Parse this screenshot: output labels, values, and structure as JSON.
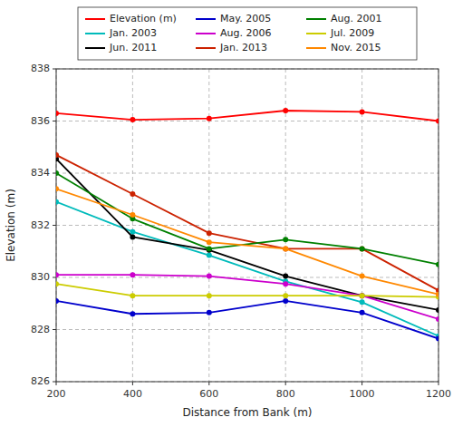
{
  "chart_data": {
    "type": "line",
    "x": [
      200,
      400,
      600,
      800,
      1000,
      1200
    ],
    "series": [
      {
        "name": "Elevation (m)",
        "color": "#ff0000",
        "values": [
          836.3,
          836.05,
          836.1,
          836.4,
          836.35,
          836.0
        ]
      },
      {
        "name": "Jan. 2003",
        "color": "#00bbbb",
        "values": [
          832.9,
          831.75,
          830.85,
          829.85,
          829.05,
          827.75
        ]
      },
      {
        "name": "Jun. 2011",
        "color": "#000000",
        "values": [
          834.55,
          831.55,
          831.05,
          830.05,
          829.3,
          828.75
        ]
      },
      {
        "name": "May. 2005",
        "color": "#0000cc",
        "values": [
          829.1,
          828.6,
          828.65,
          829.1,
          828.65,
          827.65
        ]
      },
      {
        "name": "Aug. 2006",
        "color": "#cc00cc",
        "values": [
          830.1,
          830.1,
          830.05,
          829.75,
          829.3,
          828.4
        ]
      },
      {
        "name": "Jan. 2013",
        "color": "#cc2200",
        "values": [
          834.7,
          833.2,
          831.7,
          831.1,
          831.1,
          829.5
        ]
      },
      {
        "name": "Aug. 2001",
        "color": "#008000",
        "values": [
          834.0,
          832.25,
          831.1,
          831.45,
          831.1,
          830.5
        ]
      },
      {
        "name": "Jul. 2009",
        "color": "#cccc00",
        "values": [
          829.75,
          829.3,
          829.3,
          829.3,
          829.3,
          829.25
        ]
      },
      {
        "name": "Nov. 2015",
        "color": "#ff8800",
        "values": [
          833.4,
          832.4,
          831.35,
          831.1,
          830.05,
          829.35
        ]
      }
    ],
    "xlabel": "Distance from Bank (m)",
    "ylabel": "Elevation (m)",
    "xlim": [
      200,
      1200
    ],
    "ylim": [
      826,
      838
    ],
    "xticks": [
      200,
      400,
      600,
      800,
      1000,
      1200
    ],
    "yticks": [
      826,
      828,
      830,
      832,
      834,
      836,
      838
    ],
    "grid": true,
    "legend": "top",
    "marker": "circle"
  }
}
